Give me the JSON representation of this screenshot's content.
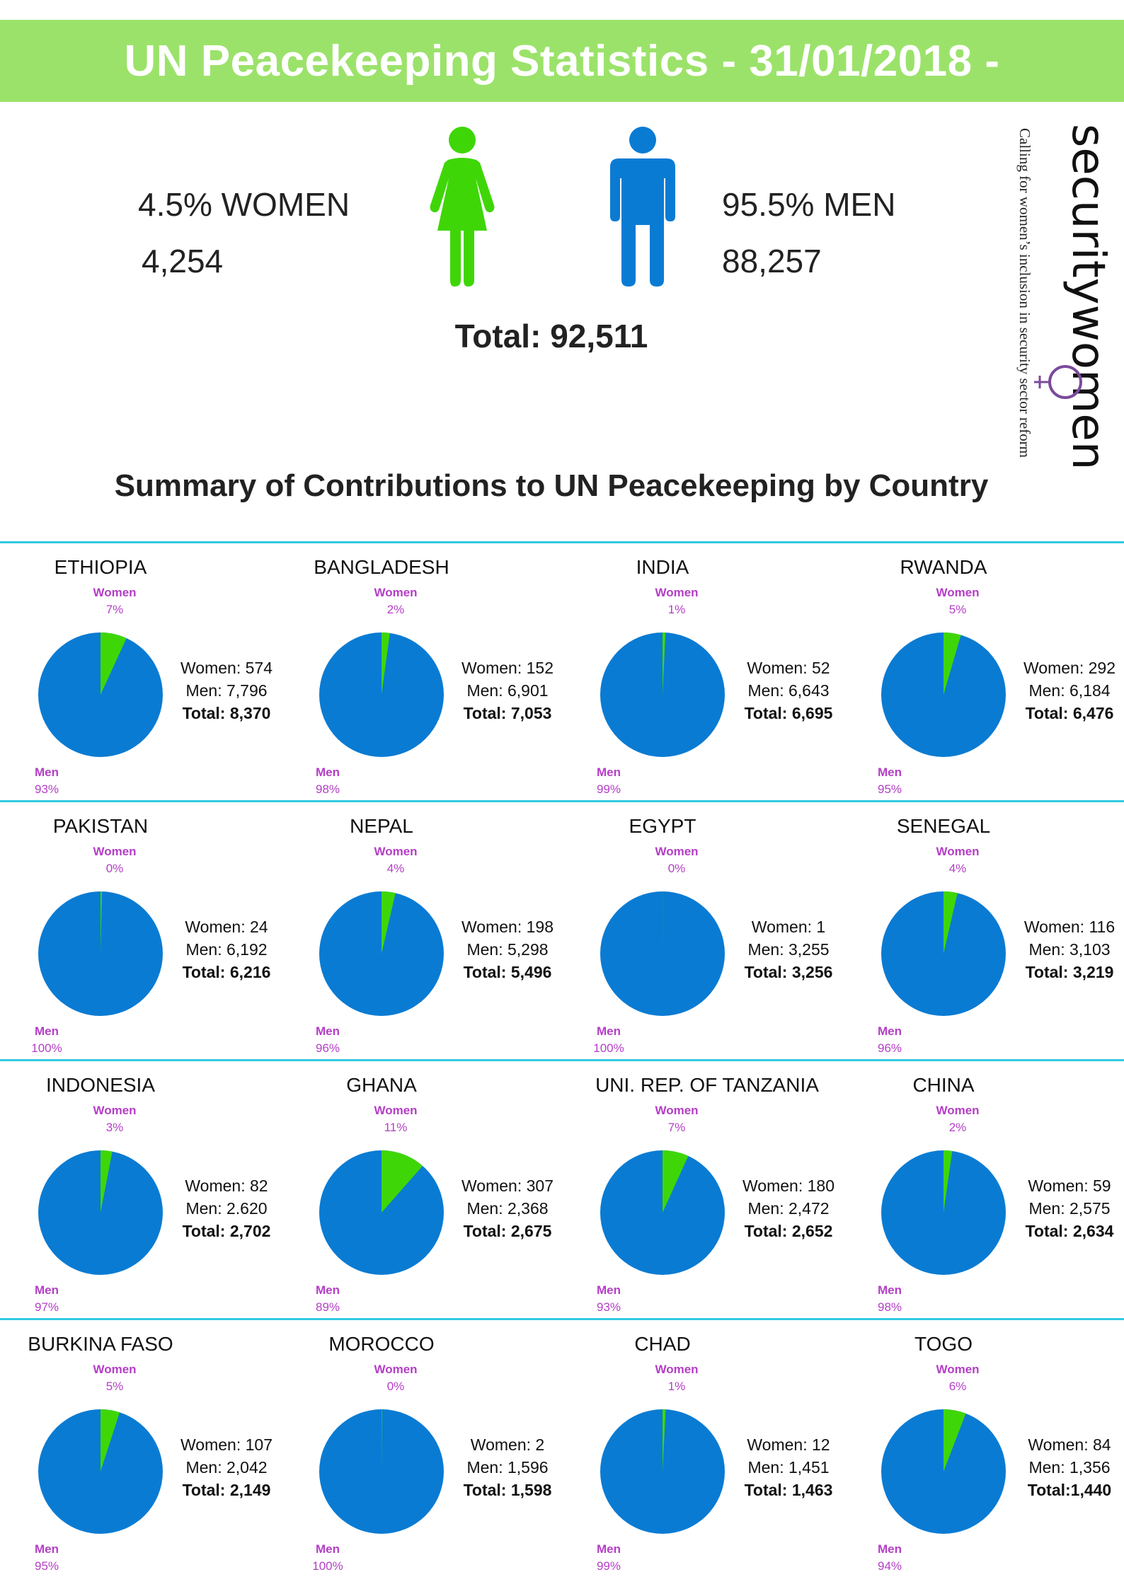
{
  "header": {
    "title": "UN Peacekeeping Statistics - 31/01/2018 -"
  },
  "overall": {
    "women_pct": "4.5% WOMEN",
    "women_count": "4,254",
    "men_pct": "95.5% MEN",
    "men_count": "88,257",
    "total": "Total: 92,511"
  },
  "logo": {
    "wordmark": "securitywomen",
    "tagline": "Calling for women’s inclusion in security sector reform"
  },
  "summary_title": "Summary of Contributions to UN Peacekeeping by Country",
  "colors": {
    "women": "#3fd608",
    "men": "#0a7bd3",
    "banner": "#9be26a",
    "divider": "#33c9e0",
    "label": "#b43ec6"
  },
  "chart_data": [
    {
      "type": "pie",
      "title": "ETHIOPIA",
      "categories": [
        "Women",
        "Men"
      ],
      "values": [
        574,
        7796
      ],
      "percent_labels": [
        "7%",
        "93%"
      ],
      "women_text": "Women: 574",
      "men_text": "Men: 7,796",
      "total_text": "Total: 8,370"
    },
    {
      "type": "pie",
      "title": "BANGLADESH",
      "categories": [
        "Women",
        "Men"
      ],
      "values": [
        152,
        6901
      ],
      "percent_labels": [
        "2%",
        "98%"
      ],
      "women_text": "Women: 152",
      "men_text": "Men: 6,901",
      "total_text": "Total: 7,053"
    },
    {
      "type": "pie",
      "title": "INDIA",
      "categories": [
        "Women",
        "Men"
      ],
      "values": [
        52,
        6643
      ],
      "percent_labels": [
        "1%",
        "99%"
      ],
      "women_text": "Women: 52",
      "men_text": "Men: 6,643",
      "total_text": "Total: 6,695"
    },
    {
      "type": "pie",
      "title": "RWANDA",
      "categories": [
        "Women",
        "Men"
      ],
      "values": [
        292,
        6184
      ],
      "percent_labels": [
        "5%",
        "95%"
      ],
      "women_text": "Women: 292",
      "men_text": "Men: 6,184",
      "total_text": "Total: 6,476"
    },
    {
      "type": "pie",
      "title": "PAKISTAN",
      "categories": [
        "Women",
        "Men"
      ],
      "values": [
        24,
        6192
      ],
      "percent_labels": [
        "0%",
        "100%"
      ],
      "women_text": "Women: 24",
      "men_text": "Men: 6,192",
      "total_text": "Total: 6,216"
    },
    {
      "type": "pie",
      "title": "NEPAL",
      "categories": [
        "Women",
        "Men"
      ],
      "values": [
        198,
        5298
      ],
      "percent_labels": [
        "4%",
        "96%"
      ],
      "women_text": "Women: 198",
      "men_text": "Men: 5,298",
      "total_text": "Total: 5,496"
    },
    {
      "type": "pie",
      "title": "EGYPT",
      "categories": [
        "Women",
        "Men"
      ],
      "values": [
        1,
        3255
      ],
      "percent_labels": [
        "0%",
        "100%"
      ],
      "women_text": "Women: 1",
      "men_text": "Men: 3,255",
      "total_text": "Total: 3,256"
    },
    {
      "type": "pie",
      "title": "SENEGAL",
      "categories": [
        "Women",
        "Men"
      ],
      "values": [
        116,
        3103
      ],
      "percent_labels": [
        "4%",
        "96%"
      ],
      "women_text": "Women: 116",
      "men_text": "Men: 3,103",
      "total_text": "Total: 3,219"
    },
    {
      "type": "pie",
      "title": "INDONESIA",
      "categories": [
        "Women",
        "Men"
      ],
      "values": [
        82,
        2620
      ],
      "percent_labels": [
        "3%",
        "97%"
      ],
      "women_text": "Women: 82",
      "men_text": "Men: 2.620",
      "total_text": "Total: 2,702"
    },
    {
      "type": "pie",
      "title": "GHANA",
      "categories": [
        "Women",
        "Men"
      ],
      "values": [
        307,
        2368
      ],
      "percent_labels": [
        "11%",
        "89%"
      ],
      "women_text": "Women: 307",
      "men_text": "Men: 2,368",
      "total_text": "Total: 2,675"
    },
    {
      "type": "pie",
      "title": "UNI. REP. OF TANZANIA",
      "categories": [
        "Women",
        "Men"
      ],
      "values": [
        180,
        2472
      ],
      "percent_labels": [
        "7%",
        "93%"
      ],
      "women_text": "Women: 180",
      "men_text": "Men: 2,472",
      "total_text": "Total: 2,652"
    },
    {
      "type": "pie",
      "title": "CHINA",
      "categories": [
        "Women",
        "Men"
      ],
      "values": [
        59,
        2575
      ],
      "percent_labels": [
        "2%",
        "98%"
      ],
      "women_text": "Women: 59",
      "men_text": "Men: 2,575",
      "total_text": "Total: 2,634"
    },
    {
      "type": "pie",
      "title": "BURKINA FASO",
      "categories": [
        "Women",
        "Men"
      ],
      "values": [
        107,
        2042
      ],
      "percent_labels": [
        "5%",
        "95%"
      ],
      "women_text": "Women: 107",
      "men_text": "Men: 2,042",
      "total_text": "Total: 2,149"
    },
    {
      "type": "pie",
      "title": "MOROCCO",
      "categories": [
        "Women",
        "Men"
      ],
      "values": [
        2,
        1596
      ],
      "percent_labels": [
        "0%",
        "100%"
      ],
      "women_text": "Women: 2",
      "men_text": "Men: 1,596",
      "total_text": "Total: 1,598"
    },
    {
      "type": "pie",
      "title": "CHAD",
      "categories": [
        "Women",
        "Men"
      ],
      "values": [
        12,
        1451
      ],
      "percent_labels": [
        "1%",
        "99%"
      ],
      "women_text": "Women: 12",
      "men_text": "Men: 1,451",
      "total_text": "Total: 1,463"
    },
    {
      "type": "pie",
      "title": "TOGO",
      "categories": [
        "Women",
        "Men"
      ],
      "values": [
        84,
        1356
      ],
      "percent_labels": [
        "6%",
        "94%"
      ],
      "women_text": "Women: 84",
      "men_text": "Men: 1,356",
      "total_text": "Total:1,440"
    }
  ]
}
